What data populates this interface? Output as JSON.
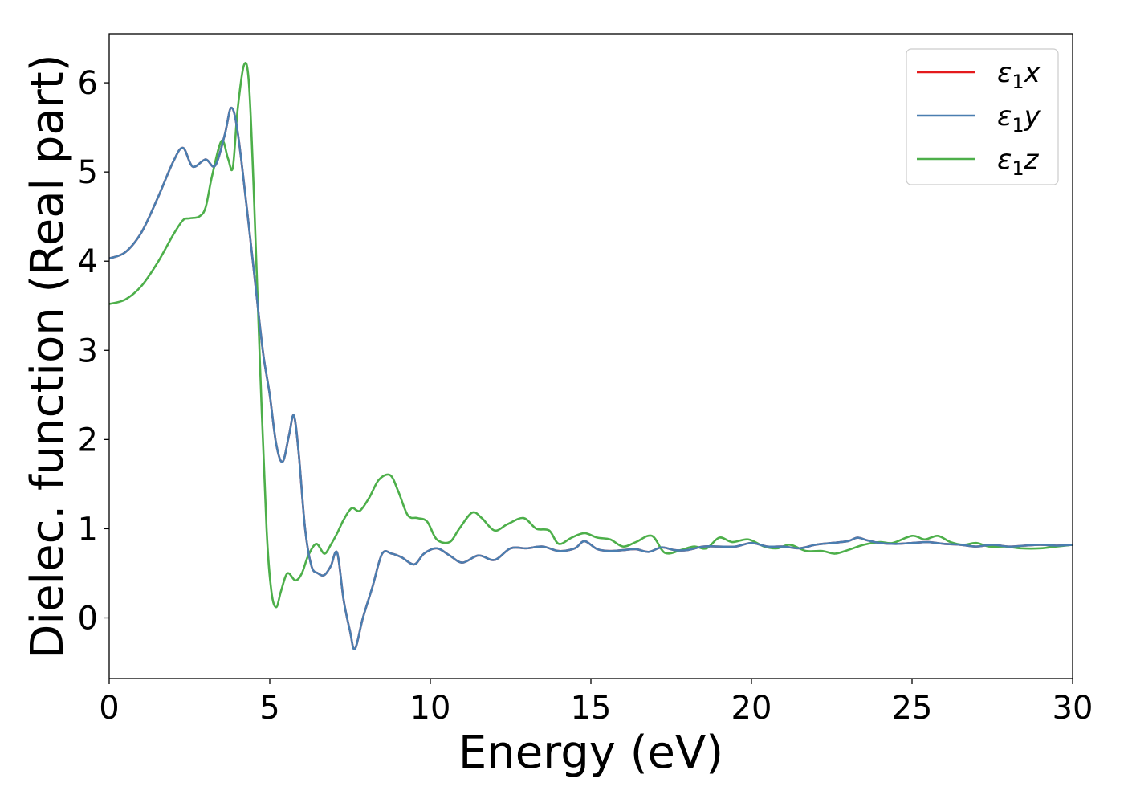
{
  "chart_data": {
    "type": "line",
    "xlabel": "Energy (eV)",
    "ylabel": "Dielec. function (Real part)",
    "xlim": [
      0,
      30
    ],
    "ylim": [
      -0.68,
      6.55
    ],
    "xticks": [
      0,
      5,
      10,
      15,
      20,
      25,
      30
    ],
    "yticks": [
      0,
      1,
      2,
      3,
      4,
      5,
      6
    ],
    "grid": false,
    "legend_position": "top-right",
    "series": [
      {
        "name": "ε1x",
        "legend_base": "ε",
        "legend_sub": "1",
        "legend_suffix": "x",
        "color": "#e41a1c",
        "x": [
          0,
          0.5,
          1.0,
          1.5,
          2.0,
          2.3,
          2.6,
          3.0,
          3.3,
          3.6,
          3.8,
          4.0,
          4.3,
          4.6,
          4.8,
          5.0,
          5.2,
          5.4,
          5.6,
          5.75,
          5.9,
          6.1,
          6.3,
          6.5,
          6.7,
          6.9,
          7.1,
          7.3,
          7.5,
          7.65,
          7.9,
          8.2,
          8.5,
          8.8,
          9.1,
          9.5,
          9.8,
          10.2,
          10.6,
          11.0,
          11.5,
          12.0,
          12.5,
          13.0,
          13.5,
          14.0,
          14.5,
          14.8,
          15.2,
          15.6,
          16.0,
          16.4,
          16.8,
          17.2,
          17.6,
          18.0,
          18.5,
          19.0,
          19.5,
          20.0,
          20.5,
          21.0,
          21.5,
          22.0,
          22.5,
          23.0,
          23.3,
          23.6,
          24.0,
          24.5,
          25.0,
          25.5,
          26.0,
          26.5,
          27.0,
          27.5,
          28.0,
          28.5,
          29.0,
          29.5,
          30.0
        ],
        "y": [
          4.03,
          4.1,
          4.32,
          4.7,
          5.12,
          5.27,
          5.06,
          5.14,
          5.07,
          5.42,
          5.72,
          5.45,
          4.55,
          3.58,
          2.95,
          2.5,
          1.95,
          1.75,
          2.05,
          2.27,
          1.85,
          1.0,
          0.58,
          0.5,
          0.48,
          0.58,
          0.73,
          0.2,
          -0.15,
          -0.35,
          0.0,
          0.35,
          0.72,
          0.72,
          0.68,
          0.6,
          0.72,
          0.78,
          0.7,
          0.62,
          0.7,
          0.65,
          0.78,
          0.78,
          0.8,
          0.75,
          0.78,
          0.86,
          0.77,
          0.75,
          0.76,
          0.77,
          0.74,
          0.79,
          0.76,
          0.76,
          0.8,
          0.8,
          0.8,
          0.84,
          0.8,
          0.8,
          0.78,
          0.82,
          0.84,
          0.86,
          0.9,
          0.87,
          0.84,
          0.83,
          0.84,
          0.85,
          0.83,
          0.82,
          0.8,
          0.82,
          0.8,
          0.81,
          0.82,
          0.81,
          0.82
        ]
      },
      {
        "name": "ε1y",
        "legend_base": "ε",
        "legend_sub": "1",
        "legend_suffix": "y",
        "color": "#4a7eb0",
        "x": [
          0,
          0.5,
          1.0,
          1.5,
          2.0,
          2.3,
          2.6,
          3.0,
          3.3,
          3.6,
          3.8,
          4.0,
          4.3,
          4.6,
          4.8,
          5.0,
          5.2,
          5.4,
          5.6,
          5.75,
          5.9,
          6.1,
          6.3,
          6.5,
          6.7,
          6.9,
          7.1,
          7.3,
          7.5,
          7.65,
          7.9,
          8.2,
          8.5,
          8.8,
          9.1,
          9.5,
          9.8,
          10.2,
          10.6,
          11.0,
          11.5,
          12.0,
          12.5,
          13.0,
          13.5,
          14.0,
          14.5,
          14.8,
          15.2,
          15.6,
          16.0,
          16.4,
          16.8,
          17.2,
          17.6,
          18.0,
          18.5,
          19.0,
          19.5,
          20.0,
          20.5,
          21.0,
          21.5,
          22.0,
          22.5,
          23.0,
          23.3,
          23.6,
          24.0,
          24.5,
          25.0,
          25.5,
          26.0,
          26.5,
          27.0,
          27.5,
          28.0,
          28.5,
          29.0,
          29.5,
          30.0
        ],
        "y": [
          4.03,
          4.1,
          4.32,
          4.7,
          5.12,
          5.27,
          5.06,
          5.14,
          5.07,
          5.42,
          5.72,
          5.45,
          4.55,
          3.58,
          2.95,
          2.5,
          1.95,
          1.75,
          2.05,
          2.27,
          1.85,
          1.0,
          0.58,
          0.5,
          0.48,
          0.58,
          0.73,
          0.2,
          -0.15,
          -0.35,
          0.0,
          0.35,
          0.72,
          0.72,
          0.68,
          0.6,
          0.72,
          0.78,
          0.7,
          0.62,
          0.7,
          0.65,
          0.78,
          0.78,
          0.8,
          0.75,
          0.78,
          0.86,
          0.77,
          0.75,
          0.76,
          0.77,
          0.74,
          0.79,
          0.76,
          0.76,
          0.8,
          0.8,
          0.8,
          0.84,
          0.8,
          0.8,
          0.78,
          0.82,
          0.84,
          0.86,
          0.9,
          0.87,
          0.84,
          0.83,
          0.84,
          0.85,
          0.83,
          0.82,
          0.8,
          0.82,
          0.8,
          0.81,
          0.82,
          0.81,
          0.82
        ]
      },
      {
        "name": "ε1z",
        "legend_base": "ε",
        "legend_sub": "1",
        "legend_suffix": "z",
        "color": "#4daf4a",
        "x": [
          0,
          0.5,
          1.0,
          1.5,
          2.0,
          2.3,
          2.5,
          2.8,
          3.0,
          3.2,
          3.5,
          3.7,
          3.85,
          4.0,
          4.2,
          4.35,
          4.5,
          4.7,
          4.9,
          5.05,
          5.2,
          5.35,
          5.55,
          5.8,
          6.0,
          6.2,
          6.45,
          6.7,
          6.9,
          7.1,
          7.3,
          7.55,
          7.8,
          8.1,
          8.4,
          8.75,
          9.0,
          9.3,
          9.6,
          9.9,
          10.2,
          10.6,
          10.9,
          11.3,
          11.6,
          12.0,
          12.4,
          12.9,
          13.3,
          13.7,
          14.0,
          14.4,
          14.8,
          15.2,
          15.6,
          16.0,
          16.4,
          16.9,
          17.3,
          17.8,
          18.2,
          18.6,
          19.0,
          19.4,
          19.9,
          20.4,
          20.8,
          21.2,
          21.7,
          22.2,
          22.6,
          23.0,
          23.5,
          24.0,
          24.4,
          25.0,
          25.4,
          25.8,
          26.2,
          26.6,
          27.0,
          27.4,
          27.9,
          28.4,
          29.0,
          29.5,
          30.0
        ],
        "y": [
          3.52,
          3.57,
          3.72,
          3.98,
          4.3,
          4.46,
          4.48,
          4.5,
          4.6,
          4.95,
          5.35,
          5.15,
          5.05,
          5.7,
          6.2,
          6.0,
          4.8,
          2.8,
          1.0,
          0.3,
          0.12,
          0.3,
          0.5,
          0.42,
          0.5,
          0.7,
          0.83,
          0.72,
          0.82,
          0.95,
          1.1,
          1.23,
          1.2,
          1.35,
          1.55,
          1.6,
          1.42,
          1.15,
          1.12,
          1.08,
          0.88,
          0.85,
          1.0,
          1.18,
          1.12,
          0.98,
          1.05,
          1.12,
          1.0,
          0.98,
          0.83,
          0.9,
          0.95,
          0.9,
          0.88,
          0.8,
          0.85,
          0.92,
          0.73,
          0.76,
          0.8,
          0.78,
          0.9,
          0.85,
          0.88,
          0.8,
          0.78,
          0.82,
          0.75,
          0.75,
          0.72,
          0.76,
          0.82,
          0.85,
          0.84,
          0.92,
          0.88,
          0.92,
          0.85,
          0.82,
          0.84,
          0.8,
          0.8,
          0.78,
          0.78,
          0.8,
          0.82
        ]
      }
    ]
  }
}
